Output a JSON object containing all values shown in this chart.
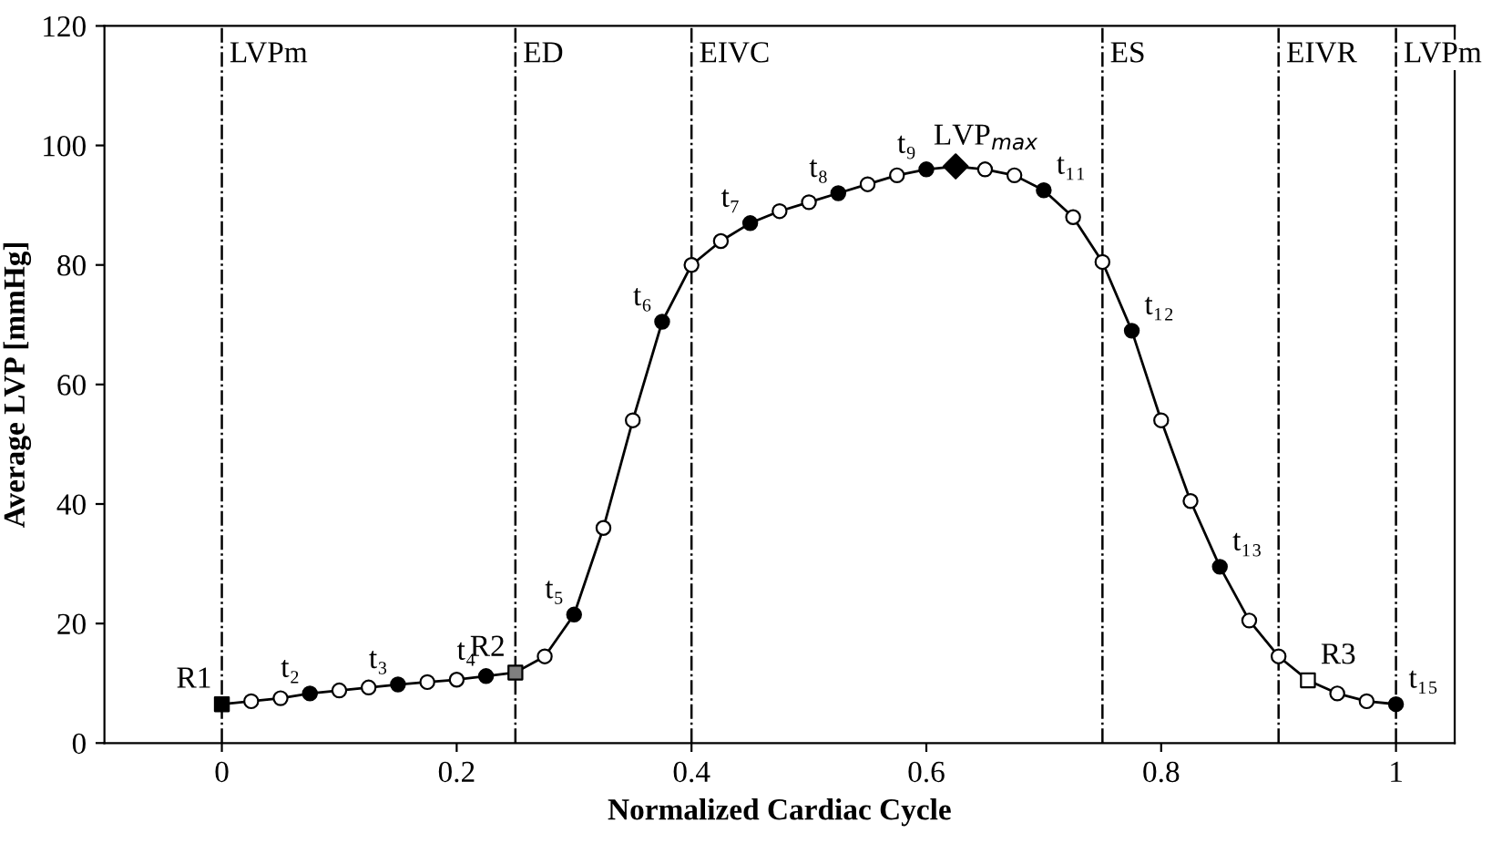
{
  "chart_data": {
    "type": "line",
    "xlabel": "Normalized Cardiac Cycle",
    "ylabel": "Average LVP [mmHg]",
    "xlim": [
      -0.1,
      1.05
    ],
    "ylim": [
      0,
      120
    ],
    "xticks": [
      0,
      0.2,
      0.4,
      0.6,
      0.8,
      1
    ],
    "yticks": [
      0,
      20,
      40,
      60,
      80,
      100,
      120
    ],
    "grid": false,
    "line_style": "solid",
    "series": [
      {
        "color": "#000000",
        "marker": "none",
        "x": [
          0,
          0.025,
          0.05,
          0.075,
          0.1,
          0.125,
          0.15,
          0.175,
          0.2,
          0.225,
          0.25,
          0.275,
          0.3,
          0.325,
          0.35,
          0.375,
          0.4,
          0.425,
          0.45,
          0.475,
          0.5,
          0.525,
          0.55,
          0.575,
          0.6,
          0.625,
          0.65,
          0.675,
          0.7,
          0.725,
          0.75,
          0.775,
          0.8,
          0.825,
          0.85,
          0.875,
          0.9,
          0.925,
          0.95,
          0.975,
          1
        ],
        "values": [
          6.5,
          7,
          7.5,
          8.3,
          8.8,
          9.3,
          9.8,
          10.2,
          10.6,
          11.2,
          11.8,
          14.5,
          21.5,
          36,
          54,
          70.5,
          80,
          84,
          87,
          89,
          90.5,
          92,
          93.5,
          95,
          96,
          96.5,
          96,
          95,
          92.5,
          88,
          80.5,
          69,
          54,
          40.5,
          29.5,
          20.5,
          14.5,
          10.5,
          8.3,
          7,
          6.5
        ]
      },
      {
        "type": "scatter",
        "color": "#ffffff",
        "marker": "circle",
        "x": [
          0.025,
          0.05,
          0.1,
          0.125,
          0.175,
          0.2,
          0.275,
          0.325,
          0.35,
          0.4,
          0.425,
          0.475,
          0.5,
          0.55,
          0.575,
          0.65,
          0.675,
          0.725,
          0.75,
          0.8,
          0.825,
          0.875,
          0.9,
          0.95,
          0.975
        ],
        "values": [
          7,
          7.5,
          8.8,
          9.3,
          10.2,
          10.6,
          14.5,
          36,
          54,
          80,
          84,
          89,
          90.5,
          93.5,
          95,
          96,
          95,
          88,
          80.5,
          54,
          40.5,
          20.5,
          14.5,
          8.3,
          7
        ]
      },
      {
        "type": "scatter",
        "color": "#000000",
        "marker": "circle",
        "x": [
          0.075,
          0.15,
          0.225,
          0.3,
          0.375,
          0.45,
          0.525,
          0.6,
          0.7,
          0.775,
          0.85,
          1
        ],
        "values": [
          8.3,
          9.8,
          11.2,
          21.5,
          70.5,
          87,
          92,
          96,
          92.5,
          69,
          29.5,
          6.5
        ]
      },
      {
        "type": "scatter",
        "color": "#000000",
        "marker": "square",
        "x": [
          0
        ],
        "values": [
          6.5
        ]
      },
      {
        "type": "scatter",
        "color": "#808080",
        "marker": "square",
        "x": [
          0.25
        ],
        "values": [
          11.8
        ]
      },
      {
        "type": "scatter",
        "color": "#ffffff",
        "marker": "square",
        "x": [
          0.925
        ],
        "values": [
          10.5
        ]
      },
      {
        "type": "scatter",
        "color": "#000000",
        "marker": "diamond",
        "x": [
          0.625
        ],
        "values": [
          96.5
        ]
      }
    ],
    "ref_lines": [
      {
        "axis": "x",
        "value": 0,
        "label": "LVPm",
        "line_style": "dashdot",
        "color": "#000000"
      },
      {
        "axis": "x",
        "value": 0.25,
        "label": "ED",
        "line_style": "dashdot",
        "color": "#000000"
      },
      {
        "axis": "x",
        "value": 0.4,
        "label": "EIVC",
        "line_style": "dashdot",
        "color": "#000000"
      },
      {
        "axis": "x",
        "value": 0.75,
        "label": "ES",
        "line_style": "dashdot",
        "color": "#000000"
      },
      {
        "axis": "x",
        "value": 0.9,
        "label": "EIVR",
        "line_style": "dashdot",
        "color": "#000000"
      },
      {
        "axis": "x",
        "value": 1,
        "label": "LVPm",
        "line_style": "dashdot",
        "color": "#000000"
      }
    ],
    "annotations": [
      {
        "text": "R1",
        "x": 0,
        "y": 6.5
      },
      {
        "text": "t₂",
        "x": 0.075,
        "y": 8.3
      },
      {
        "text": "t₃",
        "x": 0.15,
        "y": 9.8
      },
      {
        "text": "t₄",
        "x": 0.225,
        "y": 11.2
      },
      {
        "text": "R2",
        "x": 0.25,
        "y": 11.8
      },
      {
        "text": "t₅",
        "x": 0.3,
        "y": 21.5
      },
      {
        "text": "t₆",
        "x": 0.375,
        "y": 70.5
      },
      {
        "text": "t₇",
        "x": 0.45,
        "y": 87
      },
      {
        "text": "t₈",
        "x": 0.525,
        "y": 92
      },
      {
        "text": "t₉",
        "x": 0.6,
        "y": 96
      },
      {
        "text": "LVP$_{max}$",
        "x": 0.625,
        "y": 96.5
      },
      {
        "text": "t₁₁",
        "x": 0.7,
        "y": 92.5
      },
      {
        "text": "t₁₂",
        "x": 0.775,
        "y": 69
      },
      {
        "text": "t₁₃",
        "x": 0.85,
        "y": 29.5
      },
      {
        "text": "R3",
        "x": 0.925,
        "y": 10.5
      },
      {
        "text": "t₁₅",
        "x": 1,
        "y": 6.5
      }
    ]
  }
}
